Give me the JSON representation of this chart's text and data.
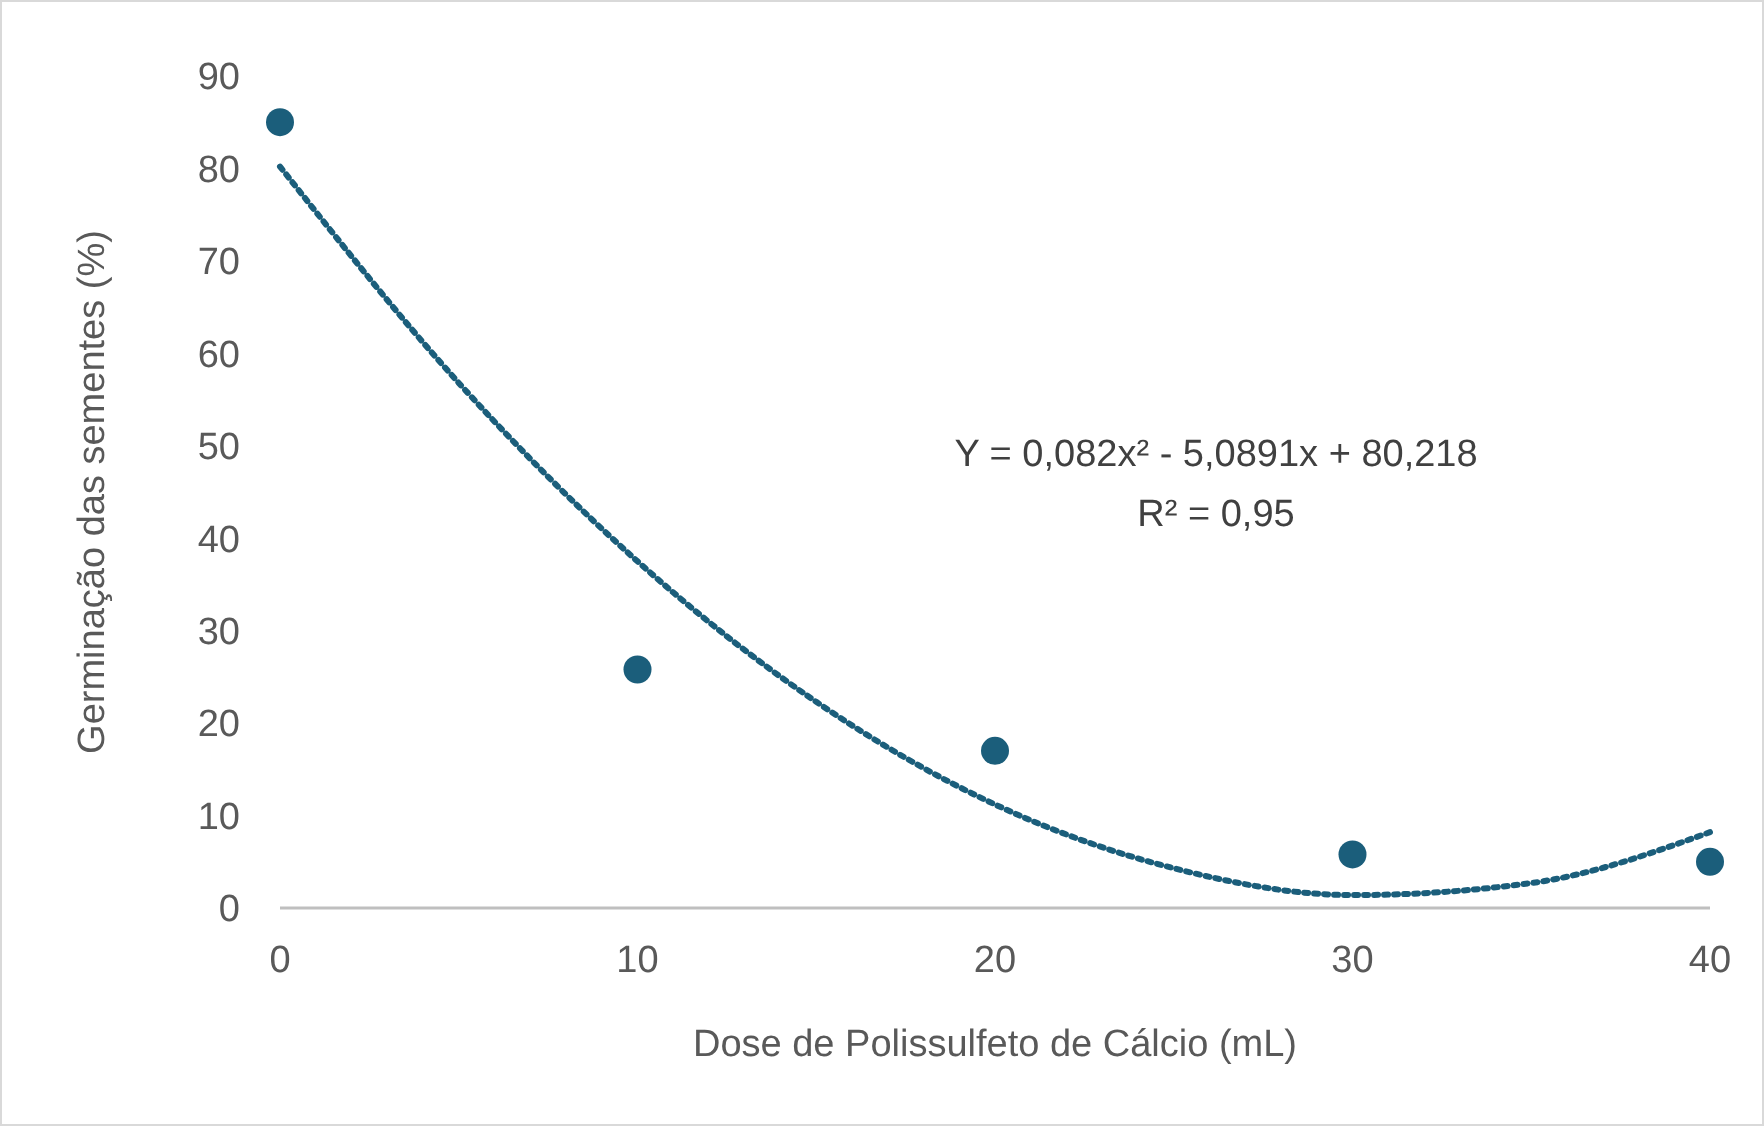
{
  "chart_data": {
    "type": "scatter",
    "xlabel": "Dose de Polissulfeto de Cálcio (mL)",
    "ylabel": "Germinação das sementes (%)",
    "x": [
      0,
      10,
      20,
      30,
      40
    ],
    "xlim": [
      0,
      40
    ],
    "xticks": [
      0,
      10,
      20,
      30,
      40
    ],
    "ylim": [
      0,
      90
    ],
    "yticks": [
      0,
      10,
      20,
      30,
      40,
      50,
      60,
      70,
      80,
      90
    ],
    "grid": false,
    "series": [
      {
        "color": "#1b5e7b",
        "marker": "circle",
        "values": [
          85,
          25.8,
          17,
          5.8,
          5
        ]
      },
      {
        "type": "line",
        "color": "#1b5e7b",
        "line_style": "dotted",
        "x": [
          0,
          5,
          10,
          15,
          20,
          25,
          30,
          35,
          40
        ],
        "values": [
          80.2,
          56.8,
          37.5,
          22.3,
          11.2,
          4.3,
          1.4,
          2.7,
          8.2
        ]
      }
    ],
    "annotations": [
      "Y = 0,082x² - 5,0891x + 80,218",
      "R² = 0,95"
    ]
  }
}
